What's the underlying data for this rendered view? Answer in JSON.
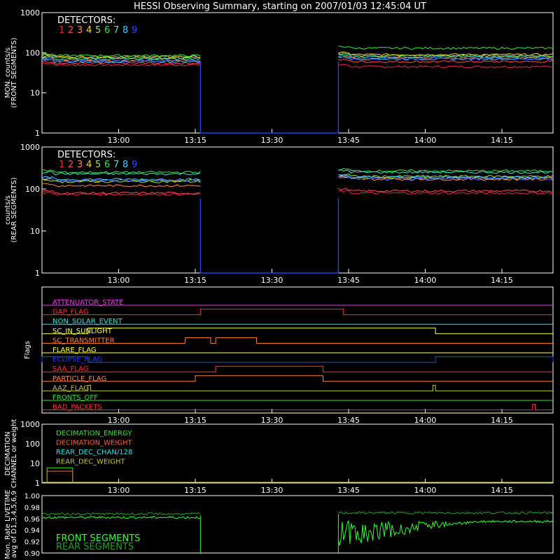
{
  "title": "HESSI Observing Summary, starting on 2007/01/03 12:45:04 UT",
  "x_ticks": [
    "13:00",
    "13:15",
    "13:30",
    "13:45",
    "14:00",
    "14:15"
  ],
  "detector_colors": [
    "#e8264a",
    "#ff4b4b",
    "#ff8a3c",
    "#ffd23c",
    "#9ae63c",
    "#3ce63c",
    "#3ce6c8",
    "#46c8ff",
    "#2050ff"
  ],
  "panels": {
    "front": {
      "ylabel": [
        "MON. counts/s",
        "(FRONT SEGMENTS)"
      ],
      "yticks": [
        "1000",
        "100",
        "10",
        "1"
      ],
      "legend_title": "DETECTORS:",
      "legend_numbers": [
        "1",
        "2",
        "3",
        "4",
        "5",
        "6",
        "7",
        "8",
        "9"
      ]
    },
    "rear": {
      "ylabel": [
        "counts/s",
        "(REAR SEGMENTS)"
      ],
      "yticks": [
        "1000",
        "100",
        "10",
        "1"
      ],
      "legend_title": "DETECTORS:",
      "legend_numbers": [
        "1",
        "2",
        "3",
        "4",
        "5",
        "6",
        "7",
        "8",
        "9"
      ]
    },
    "flags": {
      "ylabel": "Flags",
      "items": [
        {
          "label": "ATTENUATOR_STATE",
          "color": "#e040e0"
        },
        {
          "label": "GAP_FLAG",
          "color": "#ff3030"
        },
        {
          "label": "NON_SOLAR_EVENT",
          "color": "#30e0e0"
        },
        {
          "label": "SC_IN_SUNLIGHT",
          "color": "#ffff40"
        },
        {
          "label": "SC_TRANSMITTER",
          "color": "#ff8040"
        },
        {
          "label": "FLARE_FLAG",
          "color": "#ffff40"
        },
        {
          "label": "ECLIPSE_FLAG",
          "color": "#2040ff"
        },
        {
          "label": "SAA_FLAG",
          "color": "#ff3030"
        },
        {
          "label": "PARTICLE_FLAG",
          "color": "#ff8040"
        },
        {
          "label": "AAZ_FLAG",
          "color": "#c0c040"
        },
        {
          "label": "FRONTS_OFF",
          "color": "#30e030"
        },
        {
          "label": "BAD_PACKETS",
          "color": "#ff3030"
        }
      ]
    },
    "decimation": {
      "ylabel": [
        "DECIMATION",
        "CHANNEL or weight"
      ],
      "yticks": [
        "1000",
        "100",
        "10",
        "1"
      ],
      "items": [
        {
          "label": "DECIMATION_ENERGY",
          "color": "#30e030"
        },
        {
          "label": "DECIMATION_WEIGHT",
          "color": "#ff6030"
        },
        {
          "label": "REAR_DEC_CHAN/128",
          "color": "#30e0e0"
        },
        {
          "label": "REAR_DEC_WEIGHT",
          "color": "#c0c040"
        }
      ]
    },
    "livetime": {
      "ylabel": [
        "Mon. Rate LIVETIME",
        "avg of D1,3,4,5,6,9"
      ],
      "yticks": [
        "1.00",
        "0.98",
        "0.96",
        "0.94",
        "0.92",
        "0.90"
      ],
      "legend": [
        {
          "label": "FRONT SEGMENTS",
          "color": "#30ff30"
        },
        {
          "label": "REAR SEGMENTS",
          "color": "#20a020"
        }
      ]
    }
  },
  "chart_data": [
    {
      "type": "line",
      "title": "HESSI Observing Summary, starting on 2007/01/03 12:45:04 UT",
      "ylabel": "MON. counts/s (FRONT SEGMENTS)",
      "yscale": "log",
      "ylim": [
        1,
        1000
      ],
      "xlim_minutes_after_1245": [
        0,
        100
      ],
      "series": [
        {
          "name": "1",
          "segments": [
            [
              0,
              31,
              50
            ],
            [
              58,
              100,
              45
            ]
          ]
        },
        {
          "name": "2",
          "segments": [
            [
              0,
              31,
              55
            ],
            [
              58,
              100,
              60
            ]
          ]
        },
        {
          "name": "3",
          "segments": [
            [
              0,
              31,
              65
            ],
            [
              58,
              100,
              75
            ]
          ]
        },
        {
          "name": "4",
          "segments": [
            [
              0,
              31,
              80
            ],
            [
              58,
              100,
              90
            ]
          ]
        },
        {
          "name": "5",
          "segments": [
            [
              0,
              31,
              75
            ],
            [
              58,
              100,
              85
            ]
          ]
        },
        {
          "name": "6",
          "segments": [
            [
              0,
              31,
              85
            ],
            [
              58,
              100,
              130
            ]
          ]
        },
        {
          "name": "7",
          "segments": [
            [
              0,
              31,
              70
            ],
            [
              58,
              100,
              80
            ]
          ]
        },
        {
          "name": "8",
          "segments": [
            [
              0,
              31,
              60
            ],
            [
              58,
              100,
              70
            ]
          ]
        },
        {
          "name": "9",
          "segments": [
            [
              0,
              31,
              62
            ],
            [
              58,
              100,
              72
            ]
          ]
        }
      ]
    },
    {
      "type": "line",
      "ylabel": "counts/s (REAR SEGMENTS)",
      "yscale": "log",
      "ylim": [
        1,
        1000
      ],
      "series": [
        {
          "name": "1",
          "segments": [
            [
              0,
              31,
              75
            ],
            [
              58,
              100,
              80
            ]
          ]
        },
        {
          "name": "2",
          "segments": [
            [
              0,
              31,
              80
            ],
            [
              58,
              100,
              90
            ]
          ]
        },
        {
          "name": "3",
          "segments": [
            [
              0,
              31,
              120
            ],
            [
              58,
              100,
              170
            ]
          ]
        },
        {
          "name": "4",
          "segments": [
            [
              0,
              31,
              160
            ],
            [
              58,
              100,
              180
            ]
          ]
        },
        {
          "name": "5",
          "segments": [
            [
              0,
              31,
              150
            ],
            [
              58,
              100,
              200
            ]
          ]
        },
        {
          "name": "6",
          "segments": [
            [
              0,
              31,
              250
            ],
            [
              58,
              100,
              270
            ]
          ]
        },
        {
          "name": "7",
          "segments": [
            [
              0,
              31,
              230
            ],
            [
              58,
              100,
              250
            ]
          ]
        },
        {
          "name": "8",
          "segments": [
            [
              0,
              31,
              170
            ],
            [
              58,
              100,
              190
            ]
          ]
        },
        {
          "name": "9",
          "segments": [
            [
              0,
              31,
              160
            ],
            [
              58,
              100,
              175
            ]
          ]
        }
      ]
    },
    {
      "type": "line",
      "ylabel": "Flags",
      "series": [
        {
          "name": "GAP_FLAG",
          "high_intervals": [
            [
              31,
              59
            ]
          ]
        },
        {
          "name": "SC_IN_SUNLIGHT",
          "high_intervals": [
            [
              9,
              77
            ]
          ]
        },
        {
          "name": "SC_TRANSMITTER",
          "high_intervals": [
            [
              28,
              33
            ],
            [
              34,
              42
            ]
          ]
        },
        {
          "name": "ECLIPSE_FLAG",
          "high_intervals": [
            [
              0,
              9
            ],
            [
              77,
              100
            ]
          ]
        },
        {
          "name": "SAA_FLAG",
          "high_intervals": [
            [
              34,
              55
            ]
          ]
        },
        {
          "name": "PARTICLE_FLAG",
          "high_intervals": [
            [
              30,
              55
            ]
          ]
        },
        {
          "name": "AAZ_FLAG",
          "high_intervals": [
            [
              9,
              9.5
            ],
            [
              76.5,
              77
            ]
          ]
        },
        {
          "name": "BAD_PACKETS",
          "high_intervals": [
            [
              96,
              96.5
            ]
          ]
        }
      ]
    },
    {
      "type": "line",
      "ylabel": "DECIMATION CHANNEL or weight",
      "yscale": "log",
      "ylim": [
        1,
        1000
      ],
      "series": [
        {
          "name": "DECIMATION_ENERGY",
          "segments": [
            [
              1,
              6,
              6
            ]
          ]
        },
        {
          "name": "DECIMATION_WEIGHT",
          "segments": [
            [
              1,
              6,
              4
            ]
          ]
        }
      ]
    },
    {
      "type": "line",
      "ylabel": "Mon. Rate LIVETIME avg of D1,3,4,5,6,9",
      "ylim": [
        0.9,
        1.0
      ],
      "series": [
        {
          "name": "FRONT SEGMENTS",
          "segments": [
            [
              0,
              31,
              0.962
            ],
            [
              58,
              100,
              0.955
            ]
          ]
        },
        {
          "name": "REAR SEGMENTS",
          "segments": [
            [
              0,
              31,
              0.968
            ],
            [
              58,
              100,
              0.97
            ]
          ]
        }
      ]
    }
  ]
}
